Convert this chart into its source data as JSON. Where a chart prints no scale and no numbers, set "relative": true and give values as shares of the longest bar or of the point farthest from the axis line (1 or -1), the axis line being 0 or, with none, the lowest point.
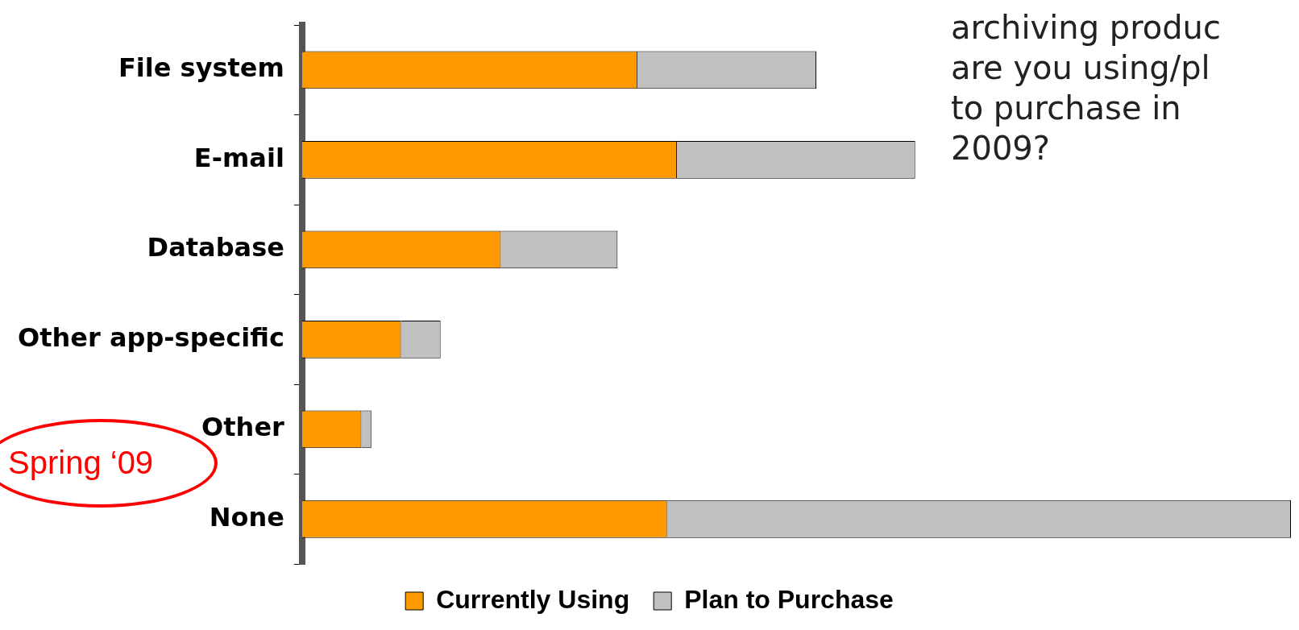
{
  "chart_data": {
    "type": "bar",
    "orientation": "horizontal",
    "stacked": true,
    "relative": true,
    "categories": [
      "File system",
      "E-mail",
      "Database",
      "Other app-specific",
      "Other",
      "None"
    ],
    "series": [
      {
        "name": "Currently Using",
        "color": "#ff9900",
        "values": [
          0.339,
          0.379,
          0.201,
          0.1,
          0.06,
          0.369
        ]
      },
      {
        "name": "Plan to Purchase",
        "color": "#c0c0c0",
        "values": [
          0.181,
          0.241,
          0.118,
          0.04,
          0.01,
          0.631
        ]
      }
    ],
    "legend": "bottom",
    "annotations": [
      "archiving produc",
      "are you using/pl",
      "to purchase in",
      "2009?",
      "Spring ‘09"
    ]
  }
}
